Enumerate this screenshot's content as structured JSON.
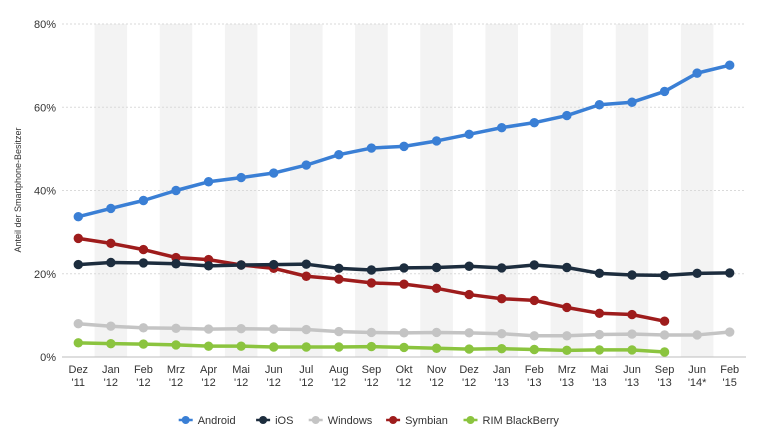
{
  "chart_data": {
    "type": "line",
    "title": "",
    "xlabel": "",
    "ylabel": "Anteil der Smartphone-Besitzer",
    "ylim": [
      0,
      80
    ],
    "yticks": [
      "0%",
      "20%",
      "40%",
      "60%",
      "80%"
    ],
    "ytick_values": [
      0,
      20,
      40,
      60,
      80
    ],
    "categories": [
      [
        "Dez",
        "'11"
      ],
      [
        "Jan",
        "'12"
      ],
      [
        "Feb",
        "'12"
      ],
      [
        "Mrz",
        "'12"
      ],
      [
        "Apr",
        "'12"
      ],
      [
        "Mai",
        "'12"
      ],
      [
        "Jun",
        "'12"
      ],
      [
        "Jul",
        "'12"
      ],
      [
        "Aug",
        "'12"
      ],
      [
        "Sep",
        "'12"
      ],
      [
        "Okt",
        "'12"
      ],
      [
        "Nov",
        "'12"
      ],
      [
        "Dez",
        "'12"
      ],
      [
        "Jan",
        "'13"
      ],
      [
        "Feb",
        "'13"
      ],
      [
        "Mrz",
        "'13"
      ],
      [
        "Mai",
        "'13"
      ],
      [
        "Jun",
        "'13"
      ],
      [
        "Sep",
        "'13"
      ],
      [
        "Jun",
        "'14*"
      ],
      [
        "Feb",
        "'15"
      ]
    ],
    "legend_position": "bottom",
    "grid": "alternating vertical bands",
    "series": [
      {
        "name": "Android",
        "color": "#3a7fd5",
        "values": [
          33.7,
          35.7,
          37.6,
          40.0,
          42.1,
          43.1,
          44.2,
          46.1,
          48.6,
          50.2,
          50.6,
          51.9,
          53.5,
          55.1,
          56.3,
          58.0,
          60.6,
          61.2,
          63.8,
          68.2,
          70.1
        ]
      },
      {
        "name": "iOS",
        "color": "#1d2d3e",
        "values": [
          22.2,
          22.7,
          22.6,
          22.4,
          21.9,
          22.1,
          22.2,
          22.3,
          21.3,
          20.9,
          21.4,
          21.5,
          21.8,
          21.4,
          22.1,
          21.5,
          20.1,
          19.7,
          19.6,
          20.1,
          20.2
        ]
      },
      {
        "name": "Windows",
        "color": "#c4c4c4",
        "values": [
          8.0,
          7.4,
          7.0,
          6.9,
          6.7,
          6.8,
          6.7,
          6.6,
          6.1,
          5.9,
          5.8,
          5.9,
          5.8,
          5.6,
          5.1,
          5.1,
          5.4,
          5.5,
          5.3,
          5.3,
          6.0
        ]
      },
      {
        "name": "Symbian",
        "color": "#9e1c1c",
        "values": [
          28.5,
          27.3,
          25.8,
          23.9,
          23.4,
          22.1,
          21.3,
          19.4,
          18.7,
          17.8,
          17.5,
          16.5,
          15.0,
          14.0,
          13.6,
          11.9,
          10.5,
          10.2,
          8.6,
          null,
          null
        ]
      },
      {
        "name": "RIM BlackBerry",
        "color": "#8bc43f",
        "values": [
          3.4,
          3.2,
          3.1,
          2.9,
          2.6,
          2.6,
          2.4,
          2.4,
          2.4,
          2.5,
          2.3,
          2.1,
          1.9,
          2.0,
          1.8,
          1.6,
          1.7,
          1.7,
          1.2,
          null,
          null
        ]
      }
    ]
  }
}
